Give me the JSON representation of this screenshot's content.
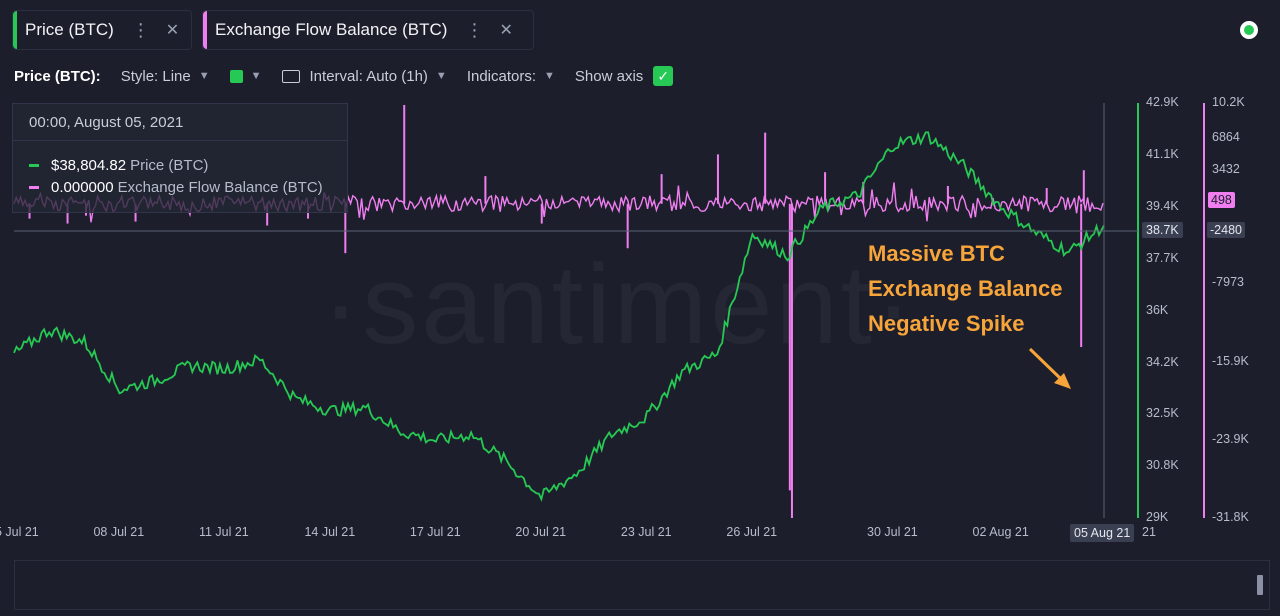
{
  "tabs": [
    {
      "label": "Price (BTC)",
      "color": "#26c953"
    },
    {
      "label": "Exchange Flow Balance (BTC)",
      "color": "#f07ef0"
    }
  ],
  "toolbar": {
    "metric_label": "Price (BTC):",
    "style": "Style: Line",
    "interval": "Interval: Auto (1h)",
    "indicators": "Indicators:",
    "show_axis": "Show axis"
  },
  "tooltip": {
    "date": "00:00, August 05, 2021",
    "price_value": "$38,804.82",
    "price_name": "Price (BTC)",
    "flow_value": "0.000000",
    "flow_name": "Exchange Flow Balance (BTC)"
  },
  "annotation": {
    "lines": [
      "Massive BTC",
      "Exchange Balance",
      "Negative Spike"
    ],
    "color": "#f7a43a"
  },
  "watermark": "·santiment·",
  "cursor_date_label": "05 Aug 21",
  "tail_label": "21",
  "colors": {
    "background": "#1c1f2b",
    "price": "#26c953",
    "flow": "#f07ef0",
    "annotation": "#f7a43a"
  },
  "chart_data": {
    "type": "line",
    "x_tick_labels": [
      "05 Jul 21",
      "08 Jul 21",
      "11 Jul 21",
      "14 Jul 21",
      "17 Jul 21",
      "20 Jul 21",
      "23 Jul 21",
      "26 Jul 21",
      "30 Jul 21",
      "02 Aug 21"
    ],
    "price_axis_ticks": [
      "42.9K",
      "41.1K",
      "39.4K",
      "37.7K",
      "36K",
      "34.2K",
      "32.5K",
      "30.8K",
      "29K"
    ],
    "price_axis_range": [
      29000,
      42900
    ],
    "flow_axis_ticks": [
      "10.2K",
      "6864",
      "3432",
      "-7973",
      "-15.9K",
      "-23.9K",
      "-31.8K"
    ],
    "flow_axis_range": [
      -31800,
      10200
    ],
    "current_price_label": "38.7K",
    "current_flow_label": "498",
    "crosshair_flow_label": "-2480",
    "series": [
      {
        "name": "Price (BTC)",
        "axis": "price",
        "color": "#26c953",
        "points": [
          [
            "05 Jul 21",
            34500
          ],
          [
            "06 Jul 21",
            35300
          ],
          [
            "07 Jul 21",
            34900
          ],
          [
            "08 Jul 21",
            33300
          ],
          [
            "09 Jul 21",
            33600
          ],
          [
            "10 Jul 21",
            34100
          ],
          [
            "11 Jul 21",
            34000
          ],
          [
            "12 Jul 21",
            34300
          ],
          [
            "13 Jul 21",
            33000
          ],
          [
            "14 Jul 21",
            32600
          ],
          [
            "15 Jul 21",
            32700
          ],
          [
            "16 Jul 21",
            31900
          ],
          [
            "17 Jul 21",
            31600
          ],
          [
            "18 Jul 21",
            31800
          ],
          [
            "19 Jul 21",
            30900
          ],
          [
            "20 Jul 21",
            29700
          ],
          [
            "21 Jul 21",
            30500
          ],
          [
            "22 Jul 21",
            31800
          ],
          [
            "23 Jul 21",
            32400
          ],
          [
            "24 Jul 21",
            33900
          ],
          [
            "25 Jul 21",
            34500
          ],
          [
            "26 Jul 21",
            38500
          ],
          [
            "27 Jul 21",
            37800
          ],
          [
            "28 Jul 21",
            39400
          ],
          [
            "29 Jul 21",
            39800
          ],
          [
            "30 Jul 21",
            41500
          ],
          [
            "31 Jul 21",
            41800
          ],
          [
            "01 Aug 21",
            40800
          ],
          [
            "02 Aug 21",
            39500
          ],
          [
            "03 Aug 21",
            38600
          ],
          [
            "04 Aug 21",
            37900
          ],
          [
            "05 Aug 21",
            38805
          ]
        ]
      },
      {
        "name": "Exchange Flow Balance (BTC)",
        "axis": "flow",
        "color": "#f07ef0",
        "baseline": 0,
        "spikes": [
          [
            "05 Jul 21",
            -1500
          ],
          [
            "06 Jul 21",
            -2000
          ],
          [
            "07 Jul 21",
            -1200
          ],
          [
            "08 Jul 21",
            -1800
          ],
          [
            "12 Jul 21",
            -2200
          ],
          [
            "13 Jul 21",
            -1500
          ],
          [
            "14 Jul 21",
            -5000
          ],
          [
            "16 Jul 21",
            10000
          ],
          [
            "18 Jul 21",
            2800
          ],
          [
            "20 Jul 21",
            -2000
          ],
          [
            "22 Jul 21",
            -4500
          ],
          [
            "23 Jul 21",
            3000
          ],
          [
            "25 Jul 21",
            5000
          ],
          [
            "26 Jul 21",
            7200
          ],
          [
            "27 Jul 21",
            -29000
          ],
          [
            "27 Jul 21",
            -31800
          ],
          [
            "28 Jul 21",
            3200
          ],
          [
            "29 Jul 21",
            2200
          ],
          [
            "31 Jul 21",
            1800
          ],
          [
            "03 Aug 21",
            1600
          ],
          [
            "04 Aug 21",
            -14500
          ],
          [
            "04 Aug 21",
            3400
          ],
          [
            "05 Aug 21",
            0
          ]
        ]
      }
    ]
  }
}
